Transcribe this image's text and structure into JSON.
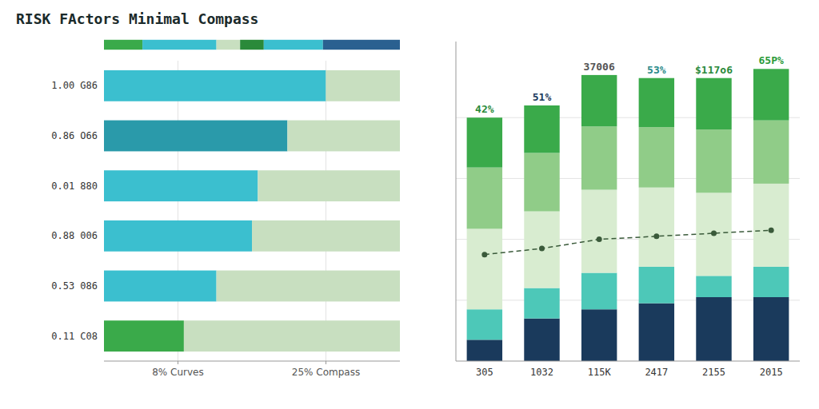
{
  "chart_data": [
    {
      "type": "bar",
      "title": "RISK FActors Minimal Compass",
      "orientation": "horizontal",
      "stacked": true,
      "categories": [
        "1.00 G86",
        "0.86 O66",
        "0.01 880",
        "0.88 006",
        "0.53 086",
        "0.11 C08"
      ],
      "series": [
        {
          "colors": [
            "#3bbfcf",
            "#2a9aaa",
            "#3bbfcf",
            "#3bbfcf",
            "#3bbfcf",
            "#3aaa4a"
          ],
          "values": [
            0.75,
            0.62,
            0.52,
            0.5,
            0.38,
            0.27
          ]
        },
        {
          "color": "#c8dfc0",
          "values": [
            0.25,
            0.38,
            0.48,
            0.5,
            0.62,
            0.73
          ]
        }
      ],
      "xlim": [
        0,
        1.0
      ],
      "xticks": [
        {
          "value": 0.25,
          "label": "8% Curves"
        },
        {
          "value": 0.75,
          "label": "25% Compass"
        }
      ],
      "grid": true
    },
    {
      "type": "bar",
      "orientation": "horizontal",
      "stacked": true,
      "categories": [
        null
      ],
      "series": [
        {
          "color": "#3aaa4a",
          "values": [
            0.13
          ]
        },
        {
          "color": "#3bbfcf",
          "values": [
            0.25
          ]
        },
        {
          "color": "#c8dfc0",
          "values": [
            0.08
          ]
        },
        {
          "color": "#2a8a3a",
          "values": [
            0.08
          ]
        },
        {
          "color": "#3bbfcf",
          "values": [
            0.2
          ]
        },
        {
          "color": "#2a6090",
          "values": [
            0.26
          ]
        }
      ],
      "xlim": [
        0,
        1.0
      ],
      "tick_labels": false
    },
    {
      "type": "bar",
      "stacked": true,
      "categories": [
        "305",
        "1032",
        "115K",
        "2417",
        "2155",
        "2015"
      ],
      "series": [
        {
          "color": "#1a3a5c",
          "values": [
            0.07,
            0.14,
            0.17,
            0.19,
            0.21,
            0.21
          ]
        },
        {
          "color": "#4dc8b8",
          "values": [
            0.1,
            0.1,
            0.12,
            0.12,
            0.07,
            0.1
          ]
        },
        {
          "color": "#d8ecd0",
          "values": [
            0.2646,
            0.252,
            0.273,
            0.2604,
            0.273,
            0.273
          ]
        },
        {
          "color": "#90cc88",
          "values": [
            0.2016,
            0.192,
            0.208,
            0.1984,
            0.208,
            0.208
          ]
        },
        {
          "color": "#3aaa4a",
          "values": [
            0.1638,
            0.156,
            0.169,
            0.1612,
            0.169,
            0.169
          ]
        },
        {
          "type": "line",
          "color": "#3a5a3a",
          "line_style": "dashed",
          "marker": "circle",
          "values": [
            0.35,
            0.37,
            0.4,
            0.41,
            0.42,
            0.43
          ]
        }
      ],
      "ylim": [
        0,
        1.05
      ],
      "yticks": [
        0.2,
        0.4,
        0.6,
        0.8
      ],
      "grid": true,
      "tick_labels": "x",
      "annotations": [
        {
          "text": "42%",
          "color": "#2a8a3a"
        },
        {
          "text": "51%",
          "color": "#1a3a5c"
        },
        {
          "text": "37006",
          "color": "#555555"
        },
        {
          "text": "53%",
          "color": "#2a8a8a"
        },
        {
          "text": "$117o6",
          "color": "#2a8a3a"
        },
        {
          "text": "65P%",
          "color": "#2a9a3a"
        }
      ]
    }
  ]
}
